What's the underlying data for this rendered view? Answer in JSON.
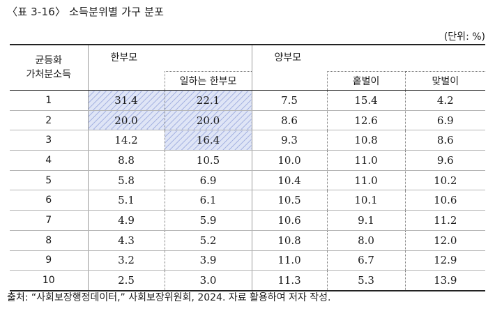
{
  "title": "〈표 3-16〉 소득분위별 가구 분포",
  "unit": "(단위: %)",
  "header": {
    "row_label_line1": "균등화",
    "row_label_line2": "가처분소득",
    "group_single": "한부모",
    "group_single_working": "일하는 한부모",
    "group_two": "양부모",
    "group_two_single_earner": "홑벌이",
    "group_two_dual_earner": "맞벌이"
  },
  "rows": [
    {
      "rank": "1",
      "single": "31.4",
      "single_working": "22.1",
      "two": "7.5",
      "single_earner": "15.4",
      "dual_earner": "4.2"
    },
    {
      "rank": "2",
      "single": "20.0",
      "single_working": "20.0",
      "two": "8.6",
      "single_earner": "12.6",
      "dual_earner": "6.9"
    },
    {
      "rank": "3",
      "single": "14.2",
      "single_working": "16.4",
      "two": "9.3",
      "single_earner": "10.8",
      "dual_earner": "8.6"
    },
    {
      "rank": "4",
      "single": "8.8",
      "single_working": "10.5",
      "two": "10.0",
      "single_earner": "11.0",
      "dual_earner": "9.6"
    },
    {
      "rank": "5",
      "single": "5.8",
      "single_working": "6.9",
      "two": "10.4",
      "single_earner": "11.0",
      "dual_earner": "10.2"
    },
    {
      "rank": "6",
      "single": "5.1",
      "single_working": "6.1",
      "two": "10.5",
      "single_earner": "10.1",
      "dual_earner": "10.6"
    },
    {
      "rank": "7",
      "single": "4.9",
      "single_working": "5.9",
      "two": "10.6",
      "single_earner": "9.1",
      "dual_earner": "11.2"
    },
    {
      "rank": "8",
      "single": "4.3",
      "single_working": "5.2",
      "two": "10.8",
      "single_earner": "8.0",
      "dual_earner": "12.0"
    },
    {
      "rank": "9",
      "single": "3.2",
      "single_working": "3.9",
      "two": "11.0",
      "single_earner": "6.7",
      "dual_earner": "12.9"
    },
    {
      "rank": "10",
      "single": "2.5",
      "single_working": "3.0",
      "two": "11.3",
      "single_earner": "5.3",
      "dual_earner": "13.9"
    }
  ],
  "highlight_color": "#dfe5f6",
  "source": "출처: “사회보장행정데이터,” 사회보장위원회, 2024. 자료 활용하여 저자 작성."
}
